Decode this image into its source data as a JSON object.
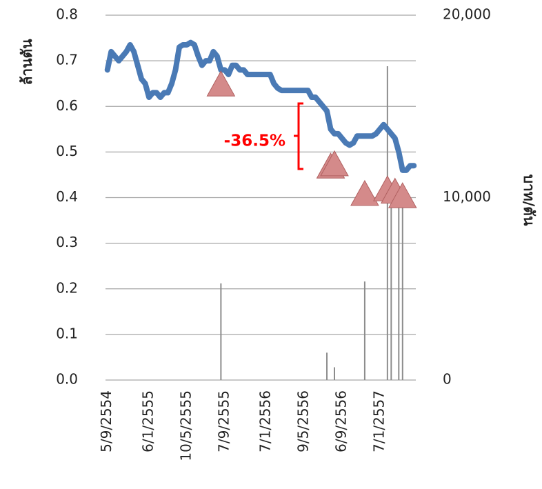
{
  "chart_data": {
    "type": "line",
    "y_label": "ล้านตัน",
    "y2_label": "บาท/ตัน",
    "annotation": "-36.5%",
    "annotation_color": "#ff0000",
    "grid": true,
    "categories": [
      "5/9/2554",
      null,
      null,
      null,
      null,
      null,
      null,
      null,
      null,
      null,
      null,
      "6/1/2555",
      null,
      null,
      null,
      null,
      null,
      null,
      null,
      null,
      null,
      "10/5/2555",
      null,
      null,
      null,
      null,
      null,
      null,
      null,
      null,
      null,
      "7/9/2555",
      null,
      null,
      null,
      null,
      null,
      null,
      null,
      null,
      null,
      null,
      "7/1/2556",
      null,
      null,
      null,
      null,
      null,
      null,
      null,
      null,
      null,
      "9/5/2556",
      null,
      null,
      null,
      null,
      null,
      null,
      null,
      null,
      null,
      "6/9/2556",
      null,
      null,
      null,
      null,
      null,
      null,
      null,
      null,
      null,
      "7/1/2557",
      null,
      null,
      null,
      null,
      null,
      null,
      null,
      null,
      null
    ],
    "ylim": [
      0,
      0.8
    ],
    "yticks": [
      {
        "value": 0,
        "label": "0.0"
      },
      0.1,
      0.2,
      0.3,
      0.4,
      0.5,
      0.6,
      0.7,
      0.8
    ],
    "y2lim": [
      0,
      20000
    ],
    "y2ticks": [
      0,
      {
        "value": 10000,
        "label": "10,000"
      },
      {
        "value": 20000,
        "label": "20,000"
      }
    ],
    "series": [
      {
        "kind": "line",
        "color": "#4a7ab5",
        "values": [
          0.68,
          0.72,
          0.71,
          0.7,
          0.71,
          0.72,
          0.735,
          0.72,
          0.69,
          0.66,
          0.65,
          0.62,
          0.63,
          0.63,
          0.62,
          0.63,
          0.63,
          0.65,
          0.68,
          0.73,
          0.735,
          0.735,
          0.74,
          0.735,
          0.71,
          0.69,
          0.7,
          0.7,
          0.72,
          0.71,
          0.68,
          0.68,
          0.67,
          0.69,
          0.69,
          0.68,
          0.68,
          0.67,
          0.67,
          0.67,
          0.67,
          0.67,
          0.67,
          0.67,
          0.65,
          0.64,
          0.635,
          0.635,
          0.635,
          0.635,
          0.635,
          0.635,
          0.635,
          0.635,
          0.62,
          0.62,
          0.61,
          0.6,
          0.59,
          0.55,
          0.54,
          0.54,
          0.53,
          0.52,
          0.515,
          0.52,
          0.535,
          0.535,
          0.535,
          0.535,
          0.535,
          0.54,
          0.55,
          0.56,
          0.55,
          0.54,
          0.53,
          0.5,
          0.46,
          0.46,
          0.47,
          0.47
        ]
      },
      {
        "kind": "bar",
        "axis": "y2",
        "color": "#8c8c8c",
        "values": [
          null,
          null,
          null,
          null,
          null,
          null,
          null,
          null,
          null,
          null,
          null,
          null,
          null,
          null,
          null,
          null,
          null,
          null,
          null,
          null,
          null,
          null,
          null,
          null,
          null,
          null,
          null,
          null,
          null,
          null,
          5300,
          null,
          null,
          null,
          null,
          null,
          null,
          null,
          null,
          null,
          null,
          null,
          null,
          null,
          null,
          null,
          null,
          null,
          null,
          null,
          null,
          null,
          null,
          null,
          null,
          null,
          null,
          null,
          1500,
          null,
          700,
          null,
          null,
          null,
          null,
          null,
          null,
          null,
          5400,
          null,
          null,
          null,
          null,
          null,
          17200,
          9600,
          null,
          9600,
          9600,
          null,
          null,
          null
        ]
      },
      {
        "kind": "marker",
        "color": "#d48a8a",
        "values": [
          null,
          null,
          null,
          null,
          null,
          null,
          null,
          null,
          null,
          null,
          null,
          null,
          null,
          null,
          null,
          null,
          null,
          null,
          null,
          null,
          null,
          null,
          null,
          null,
          null,
          null,
          null,
          null,
          null,
          null,
          0.65,
          null,
          null,
          null,
          null,
          null,
          null,
          null,
          null,
          null,
          null,
          null,
          null,
          null,
          null,
          null,
          null,
          null,
          null,
          null,
          null,
          null,
          null,
          null,
          null,
          null,
          null,
          null,
          null,
          0.47,
          0.475,
          null,
          null,
          null,
          null,
          null,
          null,
          null,
          0.41,
          null,
          null,
          null,
          null,
          null,
          0.42,
          null,
          0.415,
          null,
          0.405,
          null,
          null,
          null
        ]
      }
    ]
  }
}
